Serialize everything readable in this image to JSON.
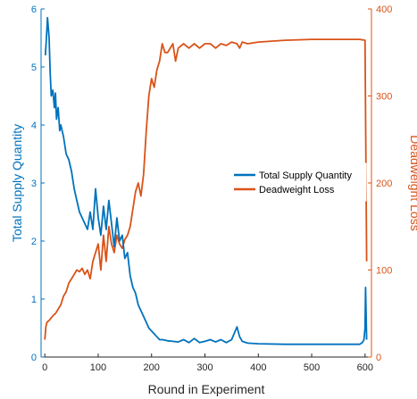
{
  "chart_data": {
    "type": "line",
    "title": "",
    "xlabel": "Round in Experiment",
    "ylabel_left": "Total Supply Quantity",
    "ylabel_right": "Deadweight Loss",
    "xlim": [
      -7,
      612
    ],
    "ylim_left": [
      0,
      6
    ],
    "ylim_right": [
      0,
      400
    ],
    "xticks": [
      "0",
      "100",
      "200",
      "300",
      "400",
      "500",
      "600"
    ],
    "yticks_left": [
      "0",
      "1",
      "2",
      "3",
      "4",
      "5",
      "6"
    ],
    "yticks_right": [
      "0",
      "100",
      "200",
      "300",
      "400"
    ],
    "grid": false,
    "legend_position": "center-right",
    "colors": {
      "supply": "#0072BD",
      "dwl": "#D95319",
      "axis": "#262626"
    },
    "series": [
      {
        "name": "Total Supply Quantity",
        "axis": "left",
        "x": [
          1,
          3,
          5,
          8,
          10,
          12,
          15,
          18,
          20,
          22,
          25,
          28,
          30,
          35,
          40,
          45,
          50,
          55,
          60,
          65,
          70,
          75,
          80,
          85,
          90,
          95,
          100,
          105,
          110,
          115,
          120,
          125,
          130,
          135,
          140,
          145,
          150,
          155,
          160,
          165,
          170,
          175,
          180,
          185,
          190,
          195,
          200,
          205,
          210,
          215,
          220,
          230,
          240,
          250,
          260,
          270,
          280,
          290,
          300,
          310,
          320,
          330,
          340,
          350,
          360,
          365,
          370,
          380,
          400,
          450,
          500,
          550,
          590,
          595,
          598,
          600,
          601,
          603
        ],
        "y": [
          5.2,
          5.5,
          5.85,
          5.5,
          4.9,
          4.5,
          4.6,
          4.3,
          4.55,
          4.1,
          4.3,
          3.9,
          4.0,
          3.8,
          3.5,
          3.4,
          3.2,
          2.9,
          2.7,
          2.5,
          2.4,
          2.3,
          2.2,
          2.5,
          2.2,
          2.9,
          2.4,
          2.1,
          2.6,
          2.2,
          2.7,
          2.3,
          1.9,
          2.4,
          2.0,
          2.1,
          1.7,
          1.8,
          1.4,
          1.2,
          1.1,
          0.9,
          0.8,
          0.7,
          0.6,
          0.5,
          0.45,
          0.4,
          0.35,
          0.3,
          0.3,
          0.28,
          0.27,
          0.26,
          0.3,
          0.25,
          0.32,
          0.25,
          0.27,
          0.3,
          0.26,
          0.3,
          0.25,
          0.3,
          0.52,
          0.35,
          0.27,
          0.24,
          0.23,
          0.22,
          0.22,
          0.22,
          0.22,
          0.25,
          0.3,
          0.5,
          1.2,
          0.3
        ]
      },
      {
        "name": "Deadweight Loss",
        "axis": "right",
        "x": [
          0,
          2,
          4,
          8,
          12,
          16,
          20,
          25,
          30,
          35,
          40,
          45,
          50,
          55,
          60,
          65,
          70,
          75,
          80,
          85,
          90,
          95,
          100,
          105,
          110,
          115,
          120,
          125,
          130,
          135,
          140,
          145,
          150,
          155,
          160,
          165,
          170,
          175,
          180,
          185,
          190,
          195,
          200,
          205,
          210,
          215,
          220,
          225,
          230,
          235,
          240,
          245,
          250,
          260,
          270,
          280,
          290,
          300,
          310,
          320,
          330,
          340,
          350,
          360,
          365,
          370,
          380,
          400,
          450,
          500,
          550,
          590,
          600,
          603
        ],
        "y": [
          20,
          35,
          40,
          42,
          45,
          48,
          50,
          55,
          60,
          70,
          75,
          85,
          90,
          95,
          100,
          98,
          102,
          95,
          100,
          90,
          110,
          120,
          130,
          100,
          140,
          110,
          150,
          130,
          120,
          140,
          130,
          125,
          135,
          140,
          150,
          170,
          190,
          200,
          185,
          210,
          260,
          300,
          320,
          310,
          330,
          340,
          360,
          350,
          350,
          355,
          360,
          340,
          355,
          360,
          355,
          360,
          355,
          360,
          360,
          355,
          360,
          358,
          362,
          360,
          355,
          362,
          360,
          362,
          364,
          365,
          365,
          365,
          364,
          110
        ]
      }
    ]
  }
}
